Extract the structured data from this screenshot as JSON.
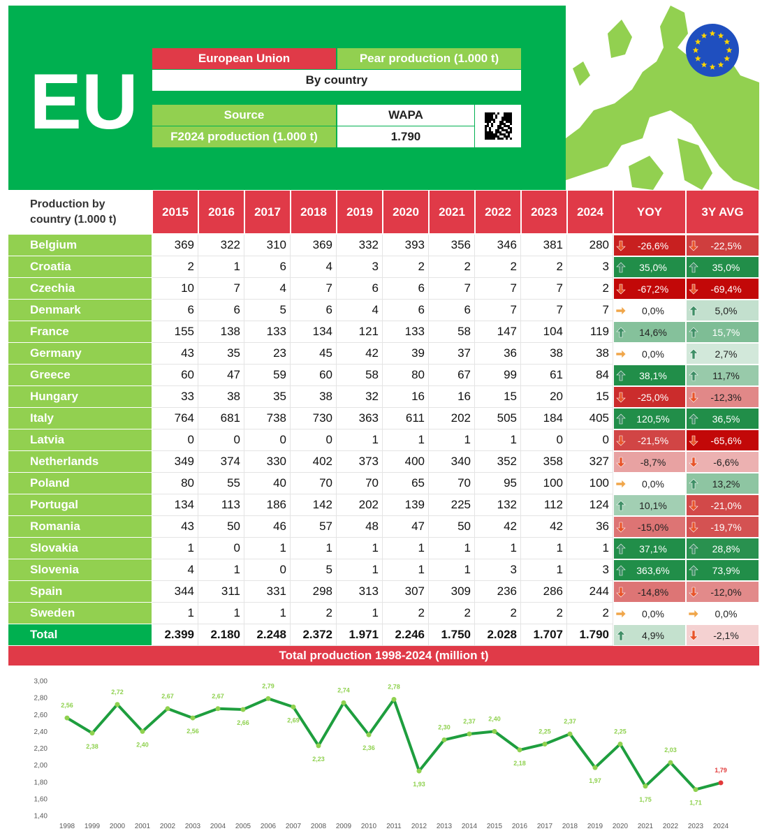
{
  "header": {
    "code": "EU",
    "region": "European Union",
    "product": "Pear production (1.000 t)",
    "subtitle": "By country",
    "source_label": "Source",
    "source": "WAPA",
    "forecast_label": "F2024 production (1.000 t)",
    "forecast": "1.790"
  },
  "table": {
    "header": [
      "Production by country (1.000 t)",
      "2015",
      "2016",
      "2017",
      "2018",
      "2019",
      "2020",
      "2021",
      "2022",
      "2023",
      "2024",
      "YOY",
      "3Y AVG"
    ],
    "rows": [
      [
        "Belgium",
        "369",
        "322",
        "310",
        "369",
        "332",
        "393",
        "356",
        "346",
        "381",
        "280",
        "-26,6%",
        "-22,5%"
      ],
      [
        "Croatia",
        "2",
        "1",
        "6",
        "4",
        "3",
        "2",
        "2",
        "2",
        "2",
        "3",
        "35,0%",
        "35,0%"
      ],
      [
        "Czechia",
        "10",
        "7",
        "4",
        "7",
        "6",
        "6",
        "7",
        "7",
        "7",
        "2",
        "-67,2%",
        "-69,4%"
      ],
      [
        "Denmark",
        "6",
        "6",
        "5",
        "6",
        "4",
        "6",
        "6",
        "7",
        "7",
        "7",
        "0,0%",
        "5,0%"
      ],
      [
        "France",
        "155",
        "138",
        "133",
        "134",
        "121",
        "133",
        "58",
        "147",
        "104",
        "119",
        "14,6%",
        "15,7%"
      ],
      [
        "Germany",
        "43",
        "35",
        "23",
        "45",
        "42",
        "39",
        "37",
        "36",
        "38",
        "38",
        "0,0%",
        "2,7%"
      ],
      [
        "Greece",
        "60",
        "47",
        "59",
        "60",
        "58",
        "80",
        "67",
        "99",
        "61",
        "84",
        "38,1%",
        "11,7%"
      ],
      [
        "Hungary",
        "33",
        "38",
        "35",
        "38",
        "32",
        "16",
        "16",
        "15",
        "20",
        "15",
        "-25,0%",
        "-12,3%"
      ],
      [
        "Italy",
        "764",
        "681",
        "738",
        "730",
        "363",
        "611",
        "202",
        "505",
        "184",
        "405",
        "120,5%",
        "36,5%"
      ],
      [
        "Latvia",
        "0",
        "0",
        "0",
        "0",
        "1",
        "1",
        "1",
        "1",
        "0",
        "0",
        "-21,5%",
        "-65,6%"
      ],
      [
        "Netherlands",
        "349",
        "374",
        "330",
        "402",
        "373",
        "400",
        "340",
        "352",
        "358",
        "327",
        "-8,7%",
        "-6,6%"
      ],
      [
        "Poland",
        "80",
        "55",
        "40",
        "70",
        "70",
        "65",
        "70",
        "95",
        "100",
        "100",
        "0,0%",
        "13,2%"
      ],
      [
        "Portugal",
        "134",
        "113",
        "186",
        "142",
        "202",
        "139",
        "225",
        "132",
        "112",
        "124",
        "10,1%",
        "-21,0%"
      ],
      [
        "Romania",
        "43",
        "50",
        "46",
        "57",
        "48",
        "47",
        "50",
        "42",
        "42",
        "36",
        "-15,0%",
        "-19,7%"
      ],
      [
        "Slovakia",
        "1",
        "0",
        "1",
        "1",
        "1",
        "1",
        "1",
        "1",
        "1",
        "1",
        "37,1%",
        "28,8%"
      ],
      [
        "Slovenia",
        "4",
        "1",
        "0",
        "5",
        "1",
        "1",
        "1",
        "3",
        "1",
        "3",
        "363,6%",
        "73,9%"
      ],
      [
        "Spain",
        "344",
        "311",
        "331",
        "298",
        "313",
        "307",
        "309",
        "236",
        "286",
        "244",
        "-14,8%",
        "-12,0%"
      ],
      [
        "Sweden",
        "1",
        "1",
        "1",
        "2",
        "1",
        "2",
        "2",
        "2",
        "2",
        "2",
        "0,0%",
        "0,0%"
      ],
      [
        "Total",
        "2.399",
        "2.180",
        "2.248",
        "2.372",
        "1.971",
        "2.246",
        "1.750",
        "2.028",
        "1.707",
        "1.790",
        "4,9%",
        "-2,1%"
      ]
    ]
  },
  "chart_data": {
    "type": "line",
    "title": "Total production 1998-2024 (million t)",
    "categories": [
      "1998",
      "1999",
      "2000",
      "2001",
      "2002",
      "2003",
      "2004",
      "2005",
      "2006",
      "2007",
      "2008",
      "2009",
      "2010",
      "2011",
      "2012",
      "2013",
      "2014",
      "2015",
      "2016",
      "2017",
      "2018",
      "2019",
      "2020",
      "2021",
      "2022",
      "2023",
      "2024"
    ],
    "values": [
      2.56,
      2.38,
      2.72,
      2.4,
      2.67,
      2.56,
      2.67,
      2.66,
      2.79,
      2.69,
      2.23,
      2.74,
      2.36,
      2.78,
      1.93,
      2.3,
      2.37,
      2.4,
      2.18,
      2.25,
      2.37,
      1.97,
      2.25,
      1.75,
      2.03,
      1.71,
      1.79
    ],
    "value_labels": [
      "2,56",
      "2,38",
      "2,72",
      "2,40",
      "2,67",
      "2,56",
      "2,67",
      "2,66",
      "2,79",
      "2,69",
      "2,23",
      "2,74",
      "2,36",
      "2,78",
      "1,93",
      "2,30",
      "2,37",
      "2,40",
      "2,18",
      "2,25",
      "2,37",
      "1,97",
      "2,25",
      "1,75",
      "2,03",
      "1,71",
      "1,79"
    ],
    "color": "#1e9e3e",
    "marker_color": "#8fd14f",
    "last_marker_color": "#e23a3a",
    "ylim": [
      1.4,
      3.0
    ],
    "yticks": [
      {
        "value": 1.4,
        "label": "1,40"
      },
      {
        "value": 1.6,
        "label": "1,60"
      },
      {
        "value": 1.8,
        "label": "1,80"
      },
      {
        "value": 2.0,
        "label": "2,00"
      },
      {
        "value": 2.2,
        "label": "2,20"
      },
      {
        "value": 2.4,
        "label": "2,40"
      },
      {
        "value": 2.6,
        "label": "2,60"
      },
      {
        "value": 2.8,
        "label": "2,80"
      },
      {
        "value": 3.0,
        "label": "3,00"
      }
    ],
    "grid": false
  }
}
